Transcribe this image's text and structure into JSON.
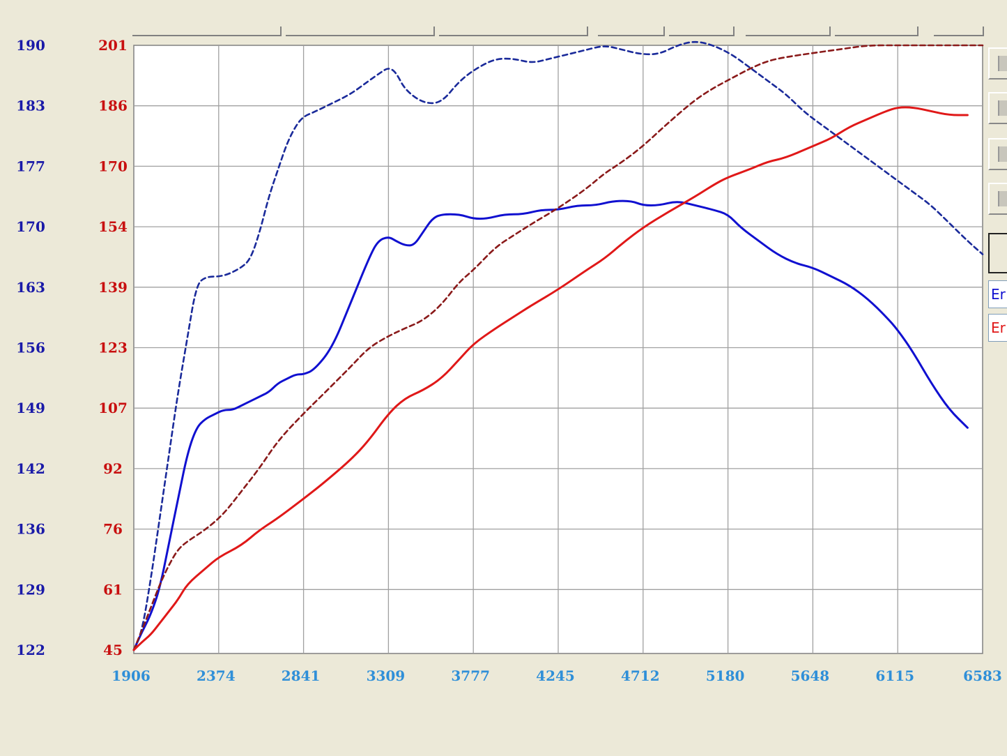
{
  "colors": {
    "background": "#ECE9D8",
    "plot_background": "#FFFFFF",
    "grid": "#A0A0A0",
    "blue_axis": "#1A1AA8",
    "red_axis": "#C81010",
    "x_axis": "#2F8FD8",
    "power_series": "#1010D0",
    "torque_series": "#E01818",
    "power_ref_series": "#1A2A9A",
    "torque_ref_series": "#8A1A1A"
  },
  "legend": {
    "power_label": "Er",
    "torque_label": "Er"
  },
  "side_buttons": [
    "button",
    "button",
    "button",
    "button",
    "button"
  ],
  "chart_data": {
    "type": "line",
    "x_ticks": [
      "1906",
      "2374",
      "2841",
      "3309",
      "3777",
      "4245",
      "4712",
      "5180",
      "5648",
      "6115",
      "6583"
    ],
    "y_left_ticks": [
      "122",
      "129",
      "136",
      "142",
      "149",
      "156",
      "163",
      "170",
      "177",
      "183",
      "190"
    ],
    "y_right_ticks": [
      "45",
      "61",
      "76",
      "92",
      "107",
      "123",
      "139",
      "154",
      "170",
      "186",
      "201"
    ],
    "xlim": [
      1906,
      6583
    ],
    "ylim_left": [
      122,
      190
    ],
    "ylim_right": [
      45,
      201
    ],
    "grid": true,
    "series": [
      {
        "axis": "left",
        "style": "dashed",
        "color": "#1A2A9A",
        "x": [
          1906,
          1950,
          2000,
          2050,
          2100,
          2150,
          2200,
          2250,
          2300,
          2400,
          2500,
          2550,
          2600,
          2650,
          2700,
          2750,
          2800,
          2841,
          2900,
          3000,
          3100,
          3200,
          3270,
          3309,
          3350,
          3400,
          3500,
          3600,
          3700,
          3800,
          3900,
          4000,
          4100,
          4200,
          4300,
          4400,
          4500,
          4600,
          4700,
          4800,
          4900,
          5000,
          5100,
          5200,
          5300,
          5400,
          5500,
          5600,
          5700,
          5800,
          5900,
          6000,
          6100,
          6200,
          6300,
          6400,
          6500,
          6583
        ],
        "y": [
          122,
          124,
          130,
          137,
          144,
          151,
          157,
          163,
          164,
          164,
          165,
          166,
          169,
          173,
          176,
          179,
          181,
          182,
          182.5,
          183.5,
          184.5,
          186,
          187,
          187.5,
          187,
          185,
          183.5,
          183.5,
          186,
          187.5,
          188.5,
          188.5,
          188,
          188.5,
          189,
          189.5,
          190,
          189.5,
          189,
          189,
          190,
          190.5,
          190,
          189,
          187.5,
          186,
          184.5,
          182.5,
          181,
          179.5,
          178,
          176.5,
          175,
          173.5,
          172,
          170,
          168,
          166.5
        ]
      },
      {
        "axis": "left",
        "style": "solid",
        "color": "#1010D0",
        "x": [
          1906,
          1950,
          2000,
          2050,
          2100,
          2150,
          2200,
          2250,
          2300,
          2350,
          2400,
          2450,
          2500,
          2550,
          2600,
          2650,
          2700,
          2750,
          2800,
          2841,
          2900,
          3000,
          3100,
          3200,
          3250,
          3309,
          3350,
          3400,
          3450,
          3500,
          3550,
          3600,
          3700,
          3777,
          3850,
          3950,
          4050,
          4150,
          4245,
          4350,
          4450,
          4550,
          4650,
          4712,
          4800,
          4900,
          5000,
          5100,
          5180,
          5250,
          5350,
          5450,
          5550,
          5648,
          5750,
          5850,
          5950,
          6050,
          6115,
          6200,
          6300,
          6400,
          6500
        ],
        "y": [
          122,
          124,
          126,
          129,
          134,
          139,
          144,
          147,
          148,
          148.5,
          149,
          149,
          149.5,
          150,
          150.5,
          151,
          152,
          152.5,
          153,
          153,
          153.5,
          156,
          161,
          166,
          168,
          168.5,
          168,
          167.5,
          167.5,
          169,
          170.5,
          171,
          171,
          170.5,
          170.5,
          171,
          171,
          171.5,
          171.5,
          172,
          172,
          172.5,
          172.5,
          172,
          172,
          172.5,
          172,
          171.5,
          171,
          169.5,
          168,
          166.5,
          165.5,
          165,
          164,
          163,
          161.5,
          159.5,
          158,
          155.5,
          152,
          149,
          147
        ]
      },
      {
        "axis": "right",
        "style": "dashed",
        "color": "#8A1A1A",
        "x": [
          1906,
          1950,
          2000,
          2050,
          2100,
          2150,
          2200,
          2300,
          2400,
          2500,
          2600,
          2700,
          2841,
          2950,
          3100,
          3200,
          3309,
          3400,
          3500,
          3600,
          3700,
          3777,
          3900,
          4000,
          4100,
          4245,
          4400,
          4500,
          4600,
          4712,
          4850,
          5000,
          5100,
          5180,
          5300,
          5400,
          5500,
          5648,
          5800,
          5950,
          6115,
          6250,
          6400,
          6583
        ],
        "y": [
          45,
          50,
          56,
          62,
          67,
          71,
          73,
          76,
          80,
          86,
          92,
          99,
          106,
          111,
          118,
          123,
          126,
          128,
          130,
          134,
          140,
          143,
          149,
          152,
          155,
          159,
          164,
          168,
          171,
          175,
          181,
          187,
          190,
          192,
          195,
          197,
          198,
          199,
          200,
          201,
          201,
          201,
          201,
          201
        ]
      },
      {
        "axis": "right",
        "style": "solid",
        "color": "#E01818",
        "x": [
          1906,
          1950,
          2000,
          2050,
          2100,
          2150,
          2200,
          2300,
          2374,
          2500,
          2600,
          2700,
          2841,
          2950,
          3100,
          3200,
          3309,
          3400,
          3500,
          3600,
          3700,
          3777,
          3900,
          4000,
          4100,
          4245,
          4400,
          4500,
          4600,
          4712,
          4850,
          5000,
          5100,
          5180,
          5300,
          5400,
          5500,
          5648,
          5750,
          5850,
          5950,
          6050,
          6115,
          6200,
          6300,
          6400,
          6500
        ],
        "y": [
          45,
          47,
          49,
          52,
          55,
          58,
          62,
          66,
          69,
          72,
          76,
          79,
          84,
          88,
          94,
          99,
          106,
          110,
          112,
          115,
          120,
          124,
          128,
          131,
          134,
          138,
          143,
          146,
          150,
          154,
          158,
          162,
          165,
          167,
          169,
          171,
          172,
          175,
          177,
          180,
          182,
          184,
          185,
          185,
          184,
          183,
          183
        ]
      }
    ]
  }
}
